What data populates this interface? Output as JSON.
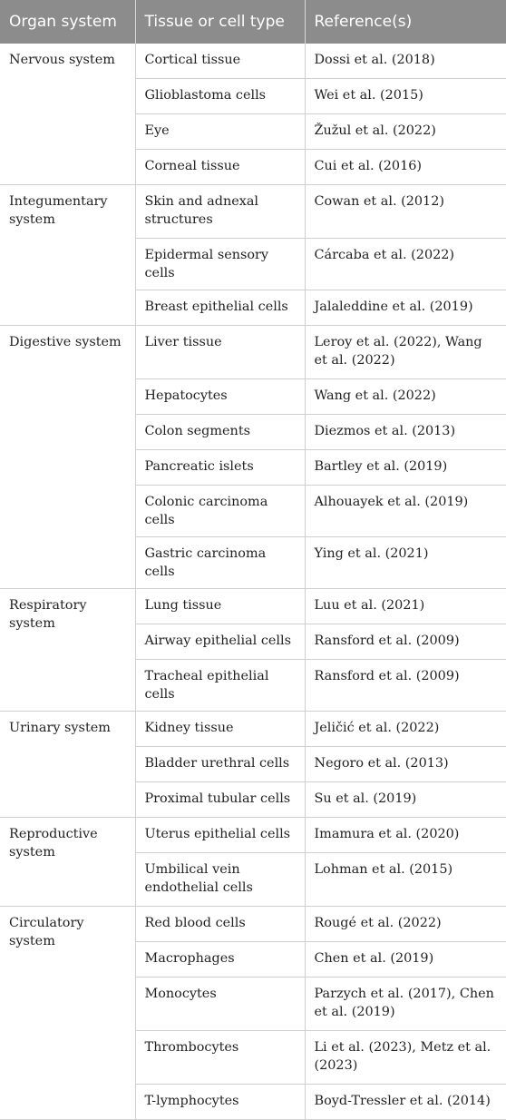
{
  "header": {
    "organ_system": "Organ system",
    "tissue_or_cell_type": "Tissue or cell type",
    "references": "Reference(s)"
  },
  "groups": [
    {
      "organ": "Nervous system",
      "rows": [
        {
          "tissue": "Cortical tissue",
          "ref": "Dossi et al. (2018)"
        },
        {
          "tissue": "Glioblastoma cells",
          "ref": "Wei et al. (2015)"
        },
        {
          "tissue": "Eye",
          "ref": "Žužul et al. (2022)"
        },
        {
          "tissue": "Corneal tissue",
          "ref": "Cui et al. (2016)"
        }
      ]
    },
    {
      "organ": "Integumentary system",
      "rows": [
        {
          "tissue": "Skin and adnexal structures",
          "ref": "Cowan et al. (2012)"
        },
        {
          "tissue": "Epidermal sensory cells",
          "ref": "Cárcaba et al. (2022)"
        },
        {
          "tissue": "Breast epithelial cells",
          "ref": "Jalaleddine et al. (2019)"
        }
      ]
    },
    {
      "organ": "Digestive system",
      "rows": [
        {
          "tissue": "Liver tissue",
          "ref": "Leroy et al. (2022), Wang et al. (2022)"
        },
        {
          "tissue": "Hepatocytes",
          "ref": "Wang et al. (2022)"
        },
        {
          "tissue": "Colon segments",
          "ref": "Diezmos et al. (2013)"
        },
        {
          "tissue": "Pancreatic islets",
          "ref": "Bartley et al. (2019)"
        },
        {
          "tissue": "Colonic carcinoma cells",
          "ref": "Alhouayek et al. (2019)"
        },
        {
          "tissue": "Gastric carcinoma cells",
          "ref": "Ying et al. (2021)"
        }
      ]
    },
    {
      "organ": "Respiratory system",
      "rows": [
        {
          "tissue": "Lung tissue",
          "ref": "Luu et al. (2021)"
        },
        {
          "tissue": "Airway epithelial cells",
          "ref": "Ransford et al. (2009)"
        },
        {
          "tissue": "Tracheal epithelial cells",
          "ref": "Ransford et al. (2009)"
        }
      ]
    },
    {
      "organ": "Urinary system",
      "rows": [
        {
          "tissue": "Kidney tissue",
          "ref": "Jeličić et al. (2022)"
        },
        {
          "tissue": "Bladder urethral cells",
          "ref": "Negoro et al. (2013)"
        },
        {
          "tissue": "Proximal tubular cells",
          "ref": "Su et al. (2019)"
        }
      ]
    },
    {
      "organ": "Reproductive system",
      "rows": [
        {
          "tissue": "Uterus epithelial cells",
          "ref": "Imamura et al. (2020)"
        },
        {
          "tissue": "Umbilical vein endothelial cells",
          "ref": "Lohman et al. (2015)"
        }
      ]
    },
    {
      "organ": "Circulatory system",
      "rows": [
        {
          "tissue": "Red blood cells",
          "ref": "Rougé et al. (2022)"
        },
        {
          "tissue": "Macrophages",
          "ref": "Chen et al. (2019)"
        },
        {
          "tissue": "Monocytes",
          "ref": "Parzych et al. (2017), Chen et al. (2019)"
        },
        {
          "tissue": "Thrombocytes",
          "ref": "Li et al. (2023), Metz et al. (2023)"
        },
        {
          "tissue": "T-lymphocytes",
          "ref": "Boyd-Tressler et al. (2014)"
        }
      ]
    }
  ]
}
